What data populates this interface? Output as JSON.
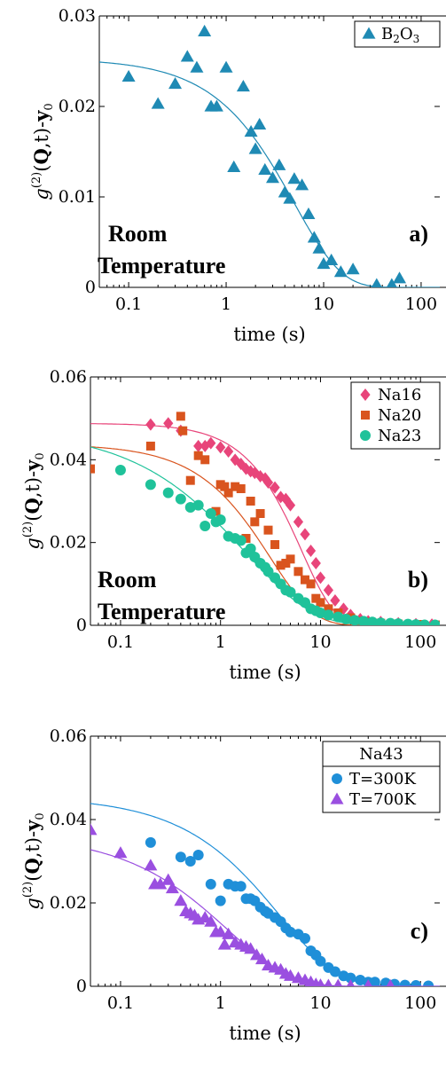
{
  "chart_data": [
    {
      "type": "scatter",
      "panel_label": "a)",
      "annotation": [
        "Room",
        "Temperature"
      ],
      "xlabel": "time (s)",
      "ylabel_parts": [
        "g",
        "(2)",
        "(",
        "Q",
        ",t)-",
        "y",
        "0"
      ],
      "x_scale": "log",
      "xlim": [
        0.05,
        180
      ],
      "ylim": [
        0,
        0.03
      ],
      "xticks": [
        {
          "v": 0.1,
          "label": "0.1"
        },
        {
          "v": 1,
          "label": "1"
        },
        {
          "v": 10,
          "label": "10"
        },
        {
          "v": 100,
          "label": "100"
        }
      ],
      "yticks": [
        {
          "v": 0,
          "label": "0"
        },
        {
          "v": 0.01,
          "label": "0.01"
        },
        {
          "v": 0.02,
          "label": "0.02"
        },
        {
          "v": 0.03,
          "label": "0.03"
        }
      ],
      "legend_title": "",
      "legend_position": "top-right",
      "series": [
        {
          "name": "B2O3",
          "name_parts": [
            "B",
            "2",
            "O",
            "3"
          ],
          "marker": "triangle",
          "color": "#1f8ab4",
          "fit": {
            "amp": 0.0253,
            "tau": 5.0,
            "beta": 0.9
          },
          "points": [
            [
              0.1,
              0.0233
            ],
            [
              0.2,
              0.0203
            ],
            [
              0.3,
              0.0225
            ],
            [
              0.4,
              0.0255
            ],
            [
              0.5,
              0.0243
            ],
            [
              0.6,
              0.0283
            ],
            [
              0.7,
              0.02
            ],
            [
              0.8,
              0.02
            ],
            [
              1.0,
              0.0243
            ],
            [
              1.2,
              0.0133
            ],
            [
              1.5,
              0.0222
            ],
            [
              1.8,
              0.0172
            ],
            [
              2.0,
              0.0153
            ],
            [
              2.2,
              0.018
            ],
            [
              2.5,
              0.013
            ],
            [
              3.0,
              0.0121
            ],
            [
              3.5,
              0.0135
            ],
            [
              4.0,
              0.0105
            ],
            [
              4.5,
              0.0098
            ],
            [
              5.0,
              0.012
            ],
            [
              6.0,
              0.0113
            ],
            [
              7.0,
              0.0081
            ],
            [
              8.0,
              0.0055
            ],
            [
              9.0,
              0.0043
            ],
            [
              10,
              0.0026
            ],
            [
              12,
              0.003
            ],
            [
              15,
              0.0017
            ],
            [
              20,
              0.002
            ],
            [
              35,
              0.0003
            ],
            [
              50,
              0.0003
            ],
            [
              60,
              0.001
            ]
          ]
        }
      ]
    },
    {
      "type": "scatter",
      "panel_label": "b)",
      "annotation": [
        "Room",
        "Temperature"
      ],
      "xlabel": "time (s)",
      "ylabel_parts": [
        "g",
        "(2)",
        "(",
        "Q",
        ",t)-",
        "y",
        "0"
      ],
      "x_scale": "log",
      "xlim": [
        0.05,
        180
      ],
      "ylim": [
        0,
        0.06
      ],
      "xticks": [
        {
          "v": 0.1,
          "label": "0.1"
        },
        {
          "v": 1,
          "label": "1"
        },
        {
          "v": 10,
          "label": "10"
        },
        {
          "v": 100,
          "label": "100"
        }
      ],
      "yticks": [
        {
          "v": 0,
          "label": "0"
        },
        {
          "v": 0.02,
          "label": "0.02"
        },
        {
          "v": 0.04,
          "label": "0.04"
        },
        {
          "v": 0.06,
          "label": "0.06"
        }
      ],
      "legend_title": "",
      "legend_position": "top-right",
      "series": [
        {
          "name": "Na16",
          "marker": "diamond",
          "color": "#e8457a",
          "fit": {
            "amp": 0.0488,
            "tau": 6.5,
            "beta": 1.3
          },
          "points": [
            [
              0.2,
              0.0485
            ],
            [
              0.3,
              0.0488
            ],
            [
              0.4,
              0.047
            ],
            [
              0.6,
              0.0433
            ],
            [
              0.7,
              0.0433
            ],
            [
              0.8,
              0.044
            ],
            [
              1.0,
              0.043
            ],
            [
              1.2,
              0.042
            ],
            [
              1.4,
              0.04
            ],
            [
              1.6,
              0.039
            ],
            [
              1.8,
              0.0378
            ],
            [
              2.0,
              0.0372
            ],
            [
              2.2,
              0.0368
            ],
            [
              2.5,
              0.036
            ],
            [
              2.8,
              0.0355
            ],
            [
              3.0,
              0.0345
            ],
            [
              3.5,
              0.0333
            ],
            [
              4.0,
              0.031
            ],
            [
              4.5,
              0.0305
            ],
            [
              5.0,
              0.029
            ],
            [
              6.0,
              0.025
            ],
            [
              7.0,
              0.022
            ],
            [
              8.0,
              0.018
            ],
            [
              9.0,
              0.015
            ],
            [
              10,
              0.0115
            ],
            [
              12,
              0.0085
            ],
            [
              14,
              0.006
            ],
            [
              17,
              0.004
            ],
            [
              20,
              0.0025
            ],
            [
              25,
              0.0015
            ],
            [
              30,
              0.001
            ],
            [
              40,
              0.0008
            ],
            [
              60,
              0.0005
            ],
            [
              90,
              0.0003
            ],
            [
              130,
              0.0002
            ],
            [
              180,
              0.0001
            ]
          ]
        },
        {
          "name": "Na20",
          "marker": "square",
          "color": "#d9541e",
          "fit": {
            "amp": 0.0438,
            "tau": 3.2,
            "beta": 1.0
          },
          "points": [
            [
              0.05,
              0.0378
            ],
            [
              0.2,
              0.0433
            ],
            [
              0.4,
              0.0505
            ],
            [
              0.42,
              0.047
            ],
            [
              0.5,
              0.035
            ],
            [
              0.6,
              0.041
            ],
            [
              0.7,
              0.04
            ],
            [
              0.9,
              0.0275
            ],
            [
              1.0,
              0.034
            ],
            [
              1.1,
              0.0335
            ],
            [
              1.2,
              0.032
            ],
            [
              1.4,
              0.0335
            ],
            [
              1.6,
              0.033
            ],
            [
              1.8,
              0.021
            ],
            [
              2.0,
              0.03
            ],
            [
              2.2,
              0.025
            ],
            [
              2.5,
              0.027
            ],
            [
              3.0,
              0.023
            ],
            [
              3.5,
              0.0195
            ],
            [
              4.0,
              0.0145
            ],
            [
              4.5,
              0.015
            ],
            [
              5.0,
              0.016
            ],
            [
              6.0,
              0.013
            ],
            [
              7.0,
              0.011
            ],
            [
              8.0,
              0.01
            ],
            [
              9.0,
              0.0065
            ],
            [
              10,
              0.0055
            ],
            [
              12,
              0.004
            ],
            [
              15,
              0.003
            ],
            [
              20,
              0.0018
            ],
            [
              25,
              0.001
            ],
            [
              30,
              0.0008
            ],
            [
              40,
              0.0005
            ],
            [
              60,
              0.0003
            ],
            [
              100,
              0.0002
            ],
            [
              150,
              0.0001
            ]
          ]
        },
        {
          "name": "Na23",
          "marker": "circle",
          "color": "#1fc29a",
          "fit": {
            "amp": 0.0475,
            "tau": 1.8,
            "beta": 0.65
          },
          "points": [
            [
              0.1,
              0.0375
            ],
            [
              0.2,
              0.034
            ],
            [
              0.3,
              0.032
            ],
            [
              0.4,
              0.0305
            ],
            [
              0.5,
              0.0285
            ],
            [
              0.6,
              0.029
            ],
            [
              0.7,
              0.024
            ],
            [
              0.8,
              0.027
            ],
            [
              0.9,
              0.025
            ],
            [
              1.0,
              0.0255
            ],
            [
              1.2,
              0.0215
            ],
            [
              1.4,
              0.021
            ],
            [
              1.6,
              0.0205
            ],
            [
              1.8,
              0.0175
            ],
            [
              2.0,
              0.0185
            ],
            [
              2.2,
              0.0165
            ],
            [
              2.5,
              0.015
            ],
            [
              2.8,
              0.014
            ],
            [
              3.0,
              0.013
            ],
            [
              3.5,
              0.0115
            ],
            [
              4.0,
              0.01
            ],
            [
              4.5,
              0.0085
            ],
            [
              5.0,
              0.008
            ],
            [
              6.0,
              0.0065
            ],
            [
              7.0,
              0.0055
            ],
            [
              8.0,
              0.004
            ],
            [
              9.0,
              0.0035
            ],
            [
              10,
              0.003
            ],
            [
              12,
              0.0025
            ],
            [
              15,
              0.002
            ],
            [
              18,
              0.0015
            ],
            [
              22,
              0.0012
            ],
            [
              27,
              0.001
            ],
            [
              33,
              0.0008
            ],
            [
              40,
              0.0006
            ],
            [
              50,
              0.0005
            ],
            [
              60,
              0.0004
            ],
            [
              75,
              0.0003
            ],
            [
              90,
              0.0002
            ],
            [
              110,
              0.0001
            ],
            [
              140,
              0.0001
            ]
          ]
        }
      ]
    },
    {
      "type": "scatter",
      "panel_label": "c)",
      "annotation": [],
      "xlabel": "time (s)",
      "ylabel_parts": [
        "g",
        "(2)",
        "(",
        "Q",
        ",t)-",
        "y",
        "0"
      ],
      "x_scale": "log",
      "xlim": [
        0.05,
        180
      ],
      "ylim": [
        0,
        0.06
      ],
      "xticks": [
        {
          "v": 0.1,
          "label": "0.1"
        },
        {
          "v": 1,
          "label": "1"
        },
        {
          "v": 10,
          "label": "10"
        },
        {
          "v": 100,
          "label": "100"
        }
      ],
      "yticks": [
        {
          "v": 0,
          "label": "0"
        },
        {
          "v": 0.02,
          "label": "0.02"
        },
        {
          "v": 0.04,
          "label": "0.04"
        },
        {
          "v": 0.06,
          "label": "0.06"
        }
      ],
      "legend_title": "Na43",
      "legend_position": "top-right",
      "series": [
        {
          "name": "T=300K",
          "marker": "circle",
          "color": "#1f8fd8",
          "fit": {
            "amp": 0.0455,
            "tau": 4.0,
            "beta": 0.75
          },
          "points": [
            [
              0.2,
              0.0345
            ],
            [
              0.4,
              0.031
            ],
            [
              0.5,
              0.03
            ],
            [
              0.6,
              0.0315
            ],
            [
              0.8,
              0.0245
            ],
            [
              1.0,
              0.0205
            ],
            [
              1.2,
              0.0245
            ],
            [
              1.4,
              0.024
            ],
            [
              1.6,
              0.024
            ],
            [
              1.8,
              0.021
            ],
            [
              2.0,
              0.021
            ],
            [
              2.2,
              0.0205
            ],
            [
              2.5,
              0.019
            ],
            [
              2.8,
              0.018
            ],
            [
              3.0,
              0.0175
            ],
            [
              3.5,
              0.0165
            ],
            [
              4.0,
              0.0155
            ],
            [
              4.5,
              0.014
            ],
            [
              5.0,
              0.013
            ],
            [
              6.0,
              0.0125
            ],
            [
              7.0,
              0.0115
            ],
            [
              8.0,
              0.0085
            ],
            [
              9.0,
              0.0075
            ],
            [
              10,
              0.006
            ],
            [
              12,
              0.0045
            ],
            [
              14,
              0.0035
            ],
            [
              17,
              0.0025
            ],
            [
              20,
              0.002
            ],
            [
              25,
              0.0015
            ],
            [
              30,
              0.001
            ],
            [
              35,
              0.001
            ],
            [
              45,
              0.0008
            ],
            [
              55,
              0.0005
            ],
            [
              70,
              0.0003
            ],
            [
              90,
              0.0002
            ],
            [
              120,
              0.0001
            ]
          ]
        },
        {
          "name": "T=700K",
          "marker": "triangle",
          "color": "#9a4fe0",
          "fit": {
            "amp": 0.0365,
            "tau": 1.2,
            "beta": 0.7
          },
          "points": [
            [
              0.05,
              0.0375
            ],
            [
              0.1,
              0.032
            ],
            [
              0.2,
              0.029
            ],
            [
              0.22,
              0.0245
            ],
            [
              0.25,
              0.0245
            ],
            [
              0.3,
              0.0255
            ],
            [
              0.33,
              0.0235
            ],
            [
              0.4,
              0.0205
            ],
            [
              0.45,
              0.018
            ],
            [
              0.5,
              0.0175
            ],
            [
              0.55,
              0.017
            ],
            [
              0.6,
              0.016
            ],
            [
              0.7,
              0.0165
            ],
            [
              0.8,
              0.0155
            ],
            [
              0.9,
              0.013
            ],
            [
              1.0,
              0.013
            ],
            [
              1.1,
              0.01
            ],
            [
              1.2,
              0.0125
            ],
            [
              1.4,
              0.0105
            ],
            [
              1.6,
              0.01
            ],
            [
              1.8,
              0.0095
            ],
            [
              2.0,
              0.009
            ],
            [
              2.3,
              0.0075
            ],
            [
              2.6,
              0.0065
            ],
            [
              3.0,
              0.005
            ],
            [
              3.5,
              0.0045
            ],
            [
              4.0,
              0.004
            ],
            [
              4.5,
              0.003
            ],
            [
              5.0,
              0.0025
            ],
            [
              6.0,
              0.002
            ],
            [
              7.0,
              0.0015
            ],
            [
              8.0,
              0.001
            ],
            [
              9.0,
              0.0005
            ],
            [
              10,
              0.0003
            ],
            [
              12,
              0.0002
            ],
            [
              15,
              0.0002
            ],
            [
              20,
              0.0001
            ],
            [
              30,
              0.0001
            ],
            [
              50,
              0.0001
            ]
          ]
        }
      ]
    }
  ]
}
